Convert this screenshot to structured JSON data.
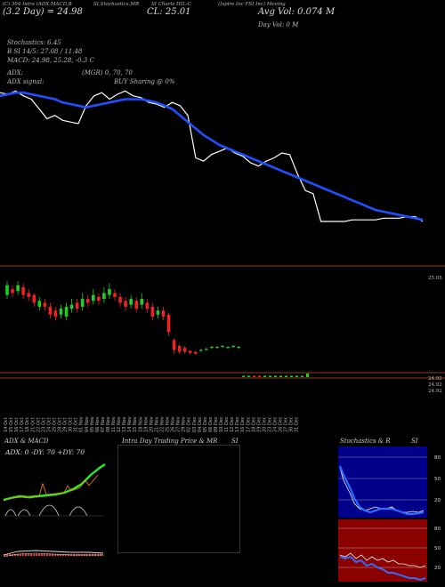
{
  "header": {
    "left_title": "(Ci 304 Intra (ADX,MACD,B",
    "mid_title": "SI,Stochastics,MR",
    "charts_title": "SI Charts IHL-C",
    "company": "(Ispire Inc FSI Inc) Moving",
    "day_line": "(3.2 Day) = 24.98",
    "close_line": "CL: 25.01",
    "avg_vol": "Avg Vol: 0.074  M",
    "day_vol": "Day Vol: 0  M",
    "stochastics": "Stochastics: 6.45",
    "rsi_line": "B        SI 14/5: 27.08 / 11.48",
    "macd_line": "MACD: 24.98, 25.28, -0.3  C",
    "adx_line": "ADX:",
    "mgr_line": "(MGR) 0,  70,  70",
    "signal_line": "ADX  signal:",
    "buy_line": "BUY Sharing @ 0%"
  },
  "price_labels": {
    "top": "25.05",
    "v1": "24.92",
    "v2": "24.92",
    "v3": "24.92"
  },
  "dates": [
    "14 Oct",
    "15 Oct",
    "16 Oct",
    "17 Oct",
    "18 Oct",
    "21 Oct",
    "22 Oct",
    "23 Oct",
    "24 Oct",
    "25 Oct",
    "28 Oct",
    "29 Oct",
    "30 Oct",
    "31 Oct",
    "01 Nov",
    "04 Nov",
    "05 Nov",
    "06 Nov",
    "07 Nov",
    "08 Nov",
    "11 Nov",
    "12 Nov",
    "13 Nov",
    "14 Nov",
    "15 Nov",
    "18 Nov",
    "19 Nov",
    "20 Nov",
    "21 Nov",
    "22 Nov",
    "25 Nov",
    "26 Nov",
    "27 Nov",
    "29 Nov",
    "02 Dec",
    "03 Dec",
    "04 Dec",
    "05 Dec",
    "06 Dec",
    "09 Dec",
    "10 Dec",
    "11 Dec",
    "12 Dec",
    "13 Dec",
    "16 Dec",
    "17 Dec",
    "18 Dec",
    "19 Dec",
    "20 Dec",
    "23 Dec",
    "24 Dec",
    "26 Dec",
    "27 Dec",
    "30 Dec",
    "31 Dec"
  ],
  "panels": {
    "adx_title": "ADX  & MACD",
    "adx_legend": "ADX: 0  -DY: 70  +DY: 70",
    "intraday_title": "Intra  Day Trading Price  & MR",
    "intraday_si": "SI",
    "stoch_title": "Stochastics & R",
    "stoch_si": "SI",
    "stoch_ticks": [
      "80",
      "50",
      "20"
    ],
    "rsi_ticks": [
      "80",
      "50",
      "20"
    ]
  },
  "colors": {
    "ma_line": "#1f4fff",
    "price_line": "#ffffff",
    "up": "#22cc22",
    "down": "#ee2222",
    "panel_red": "#8b0000",
    "panel_blue": "#00008b",
    "orange": "#ff8800"
  },
  "chart_data": [
    {
      "type": "line",
      "series": [
        {
          "values": [
            25.8,
            25.79,
            25.81,
            25.78,
            25.76,
            25.7,
            25.64,
            25.66,
            25.63,
            25.62,
            25.61,
            25.72,
            25.78,
            25.8,
            25.76,
            25.79,
            25.81,
            25.78,
            25.77,
            25.74,
            25.73,
            25.71,
            25.74,
            25.72,
            25.66,
            25.4,
            25.38,
            25.42,
            25.44,
            25.46,
            25.43,
            25.41,
            25.37,
            25.35,
            25.38,
            25.4,
            25.43,
            25.42,
            25.3,
            25.2,
            25.18,
            25.01,
            25.01,
            25.01,
            25.01,
            25.02,
            25.02,
            25.02,
            25.02,
            25.03,
            25.03,
            25.03,
            25.04,
            25.04,
            25.01
          ]
        },
        {
          "values": [
            25.78,
            25.79,
            25.8,
            25.8,
            25.79,
            25.78,
            25.77,
            25.76,
            25.74,
            25.73,
            25.72,
            25.71,
            25.72,
            25.73,
            25.74,
            25.75,
            25.76,
            25.76,
            25.76,
            25.75,
            25.74,
            25.72,
            25.7,
            25.66,
            25.62,
            25.58,
            25.54,
            25.51,
            25.48,
            25.46,
            25.44,
            25.42,
            25.4,
            25.38,
            25.36,
            25.34,
            25.32,
            25.3,
            25.28,
            25.26,
            25.24,
            25.22,
            25.2,
            25.18,
            25.16,
            25.14,
            25.12,
            25.1,
            25.08,
            25.07,
            25.06,
            25.05,
            25.04,
            25.03,
            25.02
          ]
        }
      ]
    },
    {
      "type": "candlestick",
      "bars": [
        {
          "o": 25.6,
          "c": 25.7,
          "h": 25.74,
          "l": 25.56
        },
        {
          "o": 25.66,
          "c": 25.62,
          "h": 25.7,
          "l": 25.58
        },
        {
          "o": 25.64,
          "c": 25.7,
          "h": 25.74,
          "l": 25.6
        },
        {
          "o": 25.68,
          "c": 25.6,
          "h": 25.72,
          "l": 25.56
        },
        {
          "o": 25.62,
          "c": 25.58,
          "h": 25.66,
          "l": 25.54
        },
        {
          "o": 25.6,
          "c": 25.52,
          "h": 25.62,
          "l": 25.48
        },
        {
          "o": 25.48,
          "c": 25.54,
          "h": 25.58,
          "l": 25.44
        },
        {
          "o": 25.52,
          "c": 25.48,
          "h": 25.56,
          "l": 25.44
        },
        {
          "o": 25.48,
          "c": 25.4,
          "h": 25.52,
          "l": 25.36
        },
        {
          "o": 25.44,
          "c": 25.38,
          "h": 25.48,
          "l": 25.34
        },
        {
          "o": 25.4,
          "c": 25.46,
          "h": 25.5,
          "l": 25.36
        },
        {
          "o": 25.38,
          "c": 25.48,
          "h": 25.52,
          "l": 25.34
        },
        {
          "o": 25.46,
          "c": 25.5,
          "h": 25.56,
          "l": 25.42
        },
        {
          "o": 25.52,
          "c": 25.46,
          "h": 25.56,
          "l": 25.42
        },
        {
          "o": 25.48,
          "c": 25.56,
          "h": 25.62,
          "l": 25.44
        },
        {
          "o": 25.56,
          "c": 25.52,
          "h": 25.6,
          "l": 25.48
        },
        {
          "o": 25.54,
          "c": 25.6,
          "h": 25.66,
          "l": 25.5
        },
        {
          "o": 25.58,
          "c": 25.54,
          "h": 25.62,
          "l": 25.5
        },
        {
          "o": 25.56,
          "c": 25.62,
          "h": 25.68,
          "l": 25.52
        },
        {
          "o": 25.6,
          "c": 25.66,
          "h": 25.72,
          "l": 25.56
        },
        {
          "o": 25.62,
          "c": 25.58,
          "h": 25.66,
          "l": 25.54
        },
        {
          "o": 25.58,
          "c": 25.52,
          "h": 25.62,
          "l": 25.48
        },
        {
          "o": 25.54,
          "c": 25.48,
          "h": 25.58,
          "l": 25.44
        },
        {
          "o": 25.5,
          "c": 25.56,
          "h": 25.6,
          "l": 25.46
        },
        {
          "o": 25.54,
          "c": 25.46,
          "h": 25.58,
          "l": 25.42
        },
        {
          "o": 25.5,
          "c": 25.56,
          "h": 25.62,
          "l": 25.46
        },
        {
          "o": 25.52,
          "c": 25.46,
          "h": 25.56,
          "l": 25.42
        },
        {
          "o": 25.48,
          "c": 25.38,
          "h": 25.52,
          "l": 25.34
        },
        {
          "o": 25.4,
          "c": 25.44,
          "h": 25.48,
          "l": 25.36
        },
        {
          "o": 25.44,
          "c": 25.38,
          "h": 25.48,
          "l": 25.34
        },
        {
          "o": 25.4,
          "c": 25.22,
          "h": 25.42,
          "l": 25.18
        },
        {
          "o": 25.14,
          "c": 25.04,
          "h": 25.16,
          "l": 25.0
        },
        {
          "o": 25.08,
          "c": 25.02,
          "h": 25.1,
          "l": 25.0
        },
        {
          "o": 25.06,
          "c": 25.02,
          "h": 25.08,
          "l": 25.0
        },
        {
          "o": 25.03,
          "c": 25.01,
          "h": 25.04,
          "l": 24.99
        },
        {
          "o": 25.02,
          "c": 25.0,
          "h": 25.03,
          "l": 24.99
        },
        {
          "o": 25.03,
          "c": 25.04,
          "h": 25.05,
          "l": 25.02
        },
        {
          "o": 25.04,
          "c": 25.05,
          "h": 25.06,
          "l": 25.03
        },
        {
          "o": 25.06,
          "c": 25.07,
          "h": 25.08,
          "l": 25.05
        },
        {
          "o": 25.06,
          "c": 25.07,
          "h": 25.08,
          "l": 25.05
        },
        {
          "o": 25.07,
          "c": 25.08,
          "h": 25.09,
          "l": 25.06
        },
        {
          "o": 25.06,
          "c": 25.07,
          "h": 25.08,
          "l": 25.05
        },
        {
          "o": 25.07,
          "c": 25.08,
          "h": 25.09,
          "l": 25.06
        },
        {
          "o": 25.06,
          "c": 25.07,
          "h": 25.08,
          "l": 25.05
        }
      ]
    }
  ]
}
